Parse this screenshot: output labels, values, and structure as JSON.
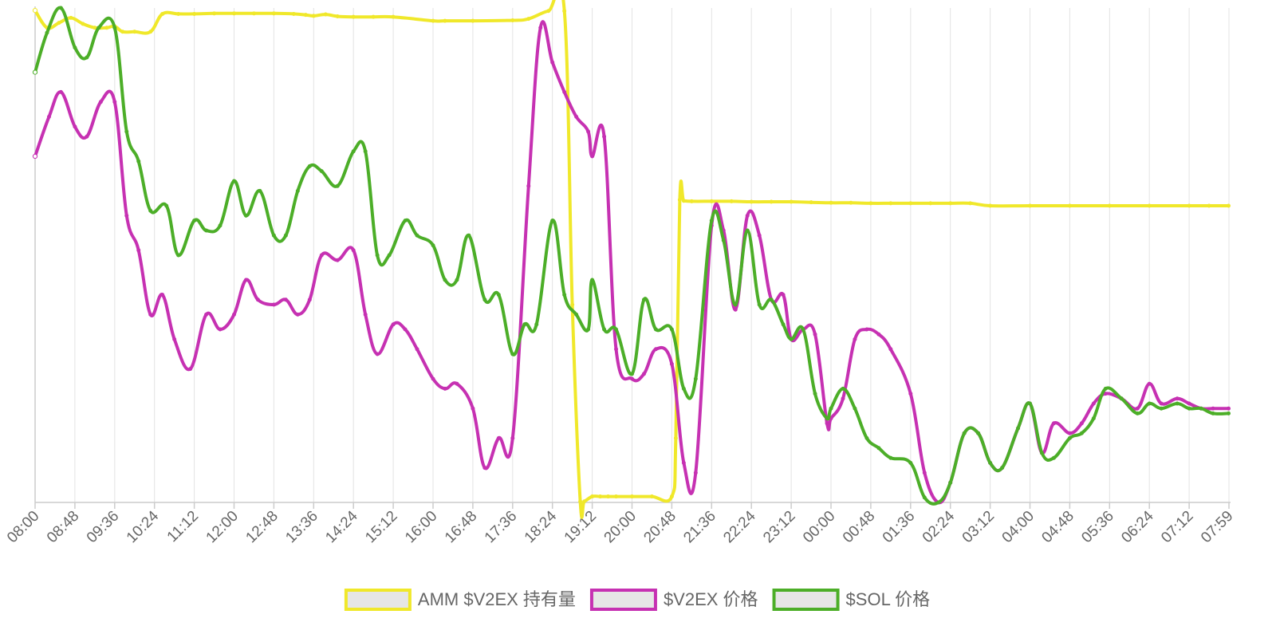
{
  "chart_data": {
    "type": "line",
    "title": "",
    "xlabel": "",
    "ylabel": "",
    "grid": "vertical",
    "legend_position": "bottom",
    "ylim": [
      0,
      100
    ],
    "x_ticks": [
      "08:00",
      "08:48",
      "09:36",
      "10:24",
      "11:12",
      "12:00",
      "12:48",
      "13:36",
      "14:24",
      "15:12",
      "16:00",
      "16:48",
      "17:36",
      "18:24",
      "19:12",
      "20:00",
      "20:48",
      "21:36",
      "22:24",
      "23:12",
      "00:00",
      "00:48",
      "01:36",
      "02:24",
      "03:12",
      "04:00",
      "04:48",
      "05:36",
      "06:24",
      "07:12",
      "07:59"
    ],
    "note_units": "y values are relative (no y-axis labels shown); 0 = bottom of plot, 100 = top",
    "series": [
      {
        "name": "AMM $V2EX 持有量",
        "color": "#f0e82a",
        "x": [
          0,
          0.3,
          0.6,
          0.9,
          1.2,
          1.5,
          1.8,
          2.0,
          2.2,
          2.5,
          2.9,
          3.2,
          3.6,
          4.0,
          4.5,
          5.0,
          5.5,
          6.0,
          6.5,
          6.8,
          7.0,
          7.3,
          7.6,
          8.0,
          8.5,
          9.0,
          10.0,
          10.3,
          11.0,
          12.0,
          12.4,
          12.9,
          13.3,
          13.5,
          13.7,
          13.8,
          14.0,
          14.2,
          14.4,
          14.6,
          15.0,
          15.5,
          16.0,
          16.1,
          16.2,
          16.3,
          16.5,
          17.0,
          17.5,
          18.0,
          18.5,
          19.0,
          19.5,
          20.0,
          20.5,
          21.0,
          21.5,
          22.0,
          22.5,
          23.0,
          23.5,
          24.0,
          25.0,
          26.0,
          27.0,
          28.0,
          29.0,
          29.5,
          29.99
        ],
        "values": [
          99.5,
          96,
          97,
          98,
          96.8,
          96,
          96,
          96.3,
          95.2,
          95.2,
          95.2,
          98.8,
          98.8,
          98.8,
          98.9,
          98.9,
          98.9,
          98.9,
          98.8,
          98.6,
          98.4,
          98.7,
          98.3,
          98.2,
          98.2,
          98.2,
          97.4,
          97.4,
          97.4,
          97.5,
          97.8,
          99.4,
          99.4,
          40,
          0.2,
          0.2,
          1.2,
          1.2,
          1.2,
          1.2,
          1.2,
          1.2,
          1.2,
          13,
          61.2,
          61,
          60.9,
          60.9,
          60.9,
          60.8,
          60.8,
          60.8,
          60.7,
          60.6,
          60.6,
          60.5,
          60.5,
          60.5,
          60.5,
          60.5,
          60.5,
          60,
          60,
          60,
          60,
          60,
          60,
          60,
          60
        ]
      },
      {
        "name": "$V2EX 价格",
        "color": "#c631b2",
        "x": [
          0,
          0.35,
          0.65,
          1.0,
          1.3,
          1.65,
          2.0,
          2.3,
          2.6,
          2.9,
          3.2,
          3.5,
          3.9,
          4.3,
          4.65,
          5.0,
          5.3,
          5.6,
          6.0,
          6.3,
          6.6,
          6.9,
          7.2,
          7.6,
          8.0,
          8.3,
          8.6,
          9.0,
          9.3,
          9.6,
          10.0,
          10.3,
          10.6,
          11.0,
          11.3,
          11.65,
          12.0,
          12.4,
          12.7,
          13.0,
          13.3,
          13.6,
          13.9,
          14.0,
          14.3,
          14.6,
          15.0,
          15.3,
          15.6,
          16.0,
          16.3,
          16.6,
          17.0,
          17.3,
          17.6,
          17.9,
          18.2,
          18.5,
          18.8,
          19.0,
          19.3,
          19.6,
          19.9,
          20.0,
          20.3,
          20.6,
          20.9,
          21.2,
          21.5,
          22.0,
          22.35,
          22.7,
          23.0,
          23.35,
          23.7,
          24.0,
          24.3,
          24.7,
          25.0,
          25.3,
          25.6,
          26.0,
          26.3,
          26.6,
          26.9,
          27.3,
          27.7,
          28.0,
          28.3,
          28.7,
          29.0,
          29.3,
          29.6,
          29.99
        ],
        "values": [
          70,
          78,
          83,
          76,
          74,
          81,
          81,
          58,
          51,
          38,
          42,
          33,
          27,
          38,
          35,
          38,
          45,
          41,
          40,
          41,
          38,
          41,
          50,
          49,
          51,
          38,
          30,
          36,
          35,
          31,
          25,
          23,
          24,
          19,
          7,
          13,
          13,
          64,
          96,
          89,
          83,
          78,
          75,
          70,
          74,
          31,
          25,
          26,
          31,
          28,
          8,
          6,
          56,
          55,
          39,
          58,
          54,
          41,
          42,
          33,
          35,
          34,
          16,
          17,
          21,
          33,
          35,
          34,
          31,
          22,
          6,
          0,
          4,
          14,
          14,
          8,
          7,
          15,
          20,
          10,
          16,
          14,
          16,
          20,
          22,
          21,
          19,
          24,
          20,
          21,
          20,
          19,
          19,
          19
        ]
      },
      {
        "name": "$SOL 价格",
        "color": "#4cae28",
        "x": [
          0,
          0.3,
          0.65,
          1.0,
          1.3,
          1.6,
          2.0,
          2.3,
          2.6,
          2.9,
          3.3,
          3.6,
          4.0,
          4.3,
          4.65,
          5.0,
          5.3,
          5.65,
          6.0,
          6.3,
          6.6,
          6.9,
          7.2,
          7.6,
          8.0,
          8.3,
          8.6,
          8.9,
          9.3,
          9.6,
          10.0,
          10.3,
          10.6,
          10.9,
          11.3,
          11.65,
          12.0,
          12.3,
          12.6,
          13.0,
          13.3,
          13.6,
          13.9,
          14.0,
          14.3,
          14.6,
          15.0,
          15.3,
          15.6,
          16.0,
          16.3,
          16.6,
          17.0,
          17.3,
          17.6,
          17.9,
          18.2,
          18.5,
          18.8,
          19.0,
          19.3,
          19.6,
          19.9,
          20.0,
          20.3,
          20.6,
          20.9,
          21.2,
          21.5,
          22.0,
          22.35,
          22.7,
          23.0,
          23.35,
          23.7,
          24.0,
          24.3,
          24.7,
          25.0,
          25.3,
          25.6,
          26.0,
          26.3,
          26.6,
          26.9,
          27.3,
          27.7,
          28.0,
          28.3,
          28.7,
          29.0,
          29.3,
          29.6,
          29.99
        ],
        "values": [
          87,
          95,
          100,
          92,
          90,
          96,
          96,
          75,
          69,
          59,
          60,
          50,
          57,
          55,
          56,
          65,
          58,
          63,
          54,
          54,
          63,
          68,
          67,
          64,
          71,
          71,
          50,
          50,
          57,
          54,
          52,
          45,
          45,
          54,
          41,
          42,
          30,
          36,
          36,
          57,
          42,
          38,
          35,
          45,
          35,
          35,
          26,
          41,
          35,
          35,
          23,
          25,
          57,
          53,
          40,
          55,
          40,
          41,
          36,
          33,
          35,
          22,
          17,
          19,
          23,
          19,
          13,
          11,
          9,
          8,
          1,
          0,
          4,
          14,
          14,
          8,
          7,
          15,
          20,
          10,
          9,
          13,
          14,
          17,
          23,
          21,
          18,
          20,
          19,
          20,
          19,
          19,
          18,
          18
        ]
      }
    ]
  }
}
